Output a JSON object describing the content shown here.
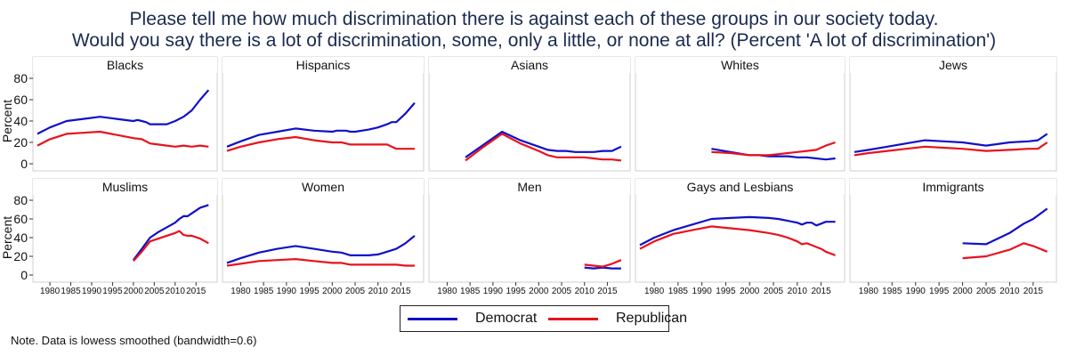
{
  "title_line1": "Please tell me how much discrimination there is against each of these groups in our society today.",
  "title_line2": "Would you say there is a lot of discrimination, some, only a little, or none at all? (Percent 'A lot of discrimination')",
  "note": "Note. Data is lowess smoothed (bandwidth=0.6)",
  "colors": {
    "democrat": "#1010c8",
    "republican": "#e8121e"
  },
  "chart_data": {
    "type": "line",
    "ylabel": "Percent",
    "xlim": [
      1977,
      2019
    ],
    "ylim": [
      0,
      80
    ],
    "x_ticks": [
      1980,
      1985,
      1990,
      1995,
      2000,
      2005,
      2010,
      2015
    ],
    "y_ticks": [
      0,
      20,
      40,
      60,
      80
    ],
    "legend": {
      "position": "bottom-center",
      "entries": [
        "Democrat",
        "Republican"
      ]
    },
    "panels": [
      {
        "name": "Blacks",
        "series": [
          {
            "name": "Democrat",
            "x": [
              1977,
              1980,
              1984,
              1988,
              1992,
              1996,
              2000,
              2001,
              2002,
              2003,
              2004,
              2005,
              2008,
              2010,
              2012,
              2013,
              2014,
              2016,
              2018
            ],
            "y": [
              28,
              34,
              40,
              42,
              44,
              42,
              40,
              41,
              40,
              39,
              37,
              37,
              37,
              40,
              44,
              47,
              50,
              60,
              69
            ]
          },
          {
            "name": "Republican",
            "x": [
              1977,
              1980,
              1984,
              1988,
              1992,
              1996,
              2000,
              2002,
              2004,
              2006,
              2008,
              2010,
              2012,
              2014,
              2016,
              2018
            ],
            "y": [
              17,
              23,
              28,
              29,
              30,
              27,
              24,
              23,
              19,
              18,
              17,
              16,
              17,
              16,
              17,
              16
            ]
          }
        ]
      },
      {
        "name": "Hispanics",
        "series": [
          {
            "name": "Democrat",
            "x": [
              1977,
              1980,
              1984,
              1988,
              1992,
              1996,
              2000,
              2001,
              2002,
              2003,
              2004,
              2005,
              2008,
              2010,
              2012,
              2013,
              2014,
              2016,
              2018
            ],
            "y": [
              16,
              21,
              27,
              30,
              33,
              31,
              30,
              31,
              31,
              31,
              30,
              30,
              32,
              34,
              37,
              39,
              39,
              47,
              57
            ]
          },
          {
            "name": "Republican",
            "x": [
              1977,
              1980,
              1984,
              1988,
              1992,
              1996,
              2000,
              2002,
              2004,
              2006,
              2008,
              2010,
              2012,
              2014,
              2016,
              2018
            ],
            "y": [
              12,
              16,
              20,
              23,
              25,
              22,
              20,
              20,
              18,
              18,
              18,
              18,
              18,
              14,
              14,
              14
            ]
          }
        ]
      },
      {
        "name": "Asians",
        "series": [
          {
            "name": "Democrat",
            "x": [
              1984,
              1988,
              1992,
              1996,
              2000,
              2002,
              2004,
              2006,
              2008,
              2010,
              2012,
              2014,
              2016,
              2018
            ],
            "y": [
              6,
              18,
              30,
              22,
              16,
              13,
              12,
              12,
              11,
              11,
              11,
              12,
              12,
              16
            ]
          },
          {
            "name": "Republican",
            "x": [
              1984,
              1988,
              1992,
              1996,
              2000,
              2002,
              2004,
              2006,
              2008,
              2010,
              2012,
              2014,
              2016,
              2018
            ],
            "y": [
              3,
              16,
              28,
              19,
              12,
              8,
              6,
              6,
              6,
              6,
              5,
              4,
              4,
              3
            ]
          }
        ]
      },
      {
        "name": "Whites",
        "series": [
          {
            "name": "Democrat",
            "x": [
              1992,
              1996,
              2000,
              2002,
              2004,
              2006,
              2008,
              2010,
              2012,
              2014,
              2016,
              2018
            ],
            "y": [
              14,
              11,
              8,
              8,
              7,
              7,
              7,
              6,
              6,
              5,
              4,
              5
            ]
          },
          {
            "name": "Republican",
            "x": [
              1992,
              1996,
              2000,
              2002,
              2004,
              2006,
              2008,
              2010,
              2012,
              2014,
              2016,
              2018
            ],
            "y": [
              11,
              10,
              8,
              8,
              8,
              9,
              10,
              11,
              12,
              13,
              17,
              20
            ]
          }
        ]
      },
      {
        "name": "Jews",
        "series": [
          {
            "name": "Democrat",
            "x": [
              1977,
              1980,
              1984,
              1988,
              1992,
              1996,
              2000,
              2005,
              2010,
              2014,
              2016,
              2018
            ],
            "y": [
              11,
              13,
              16,
              19,
              22,
              21,
              20,
              17,
              20,
              21,
              22,
              28
            ]
          },
          {
            "name": "Republican",
            "x": [
              1977,
              1980,
              1984,
              1988,
              1992,
              1996,
              2000,
              2005,
              2010,
              2014,
              2016,
              2018
            ],
            "y": [
              8,
              10,
              12,
              14,
              16,
              15,
              14,
              12,
              13,
              14,
              14,
              20
            ]
          }
        ]
      },
      {
        "name": "Muslims",
        "series": [
          {
            "name": "Democrat",
            "x": [
              2000,
              2002,
              2004,
              2006,
              2008,
              2010,
              2011,
              2012,
              2013,
              2014,
              2016,
              2018
            ],
            "y": [
              16,
              28,
              40,
              46,
              51,
              56,
              60,
              63,
              63,
              66,
              72,
              75
            ]
          },
          {
            "name": "Republican",
            "x": [
              2000,
              2002,
              2004,
              2006,
              2008,
              2010,
              2011,
              2012,
              2013,
              2014,
              2016,
              2018
            ],
            "y": [
              15,
              25,
              36,
              39,
              42,
              45,
              47,
              43,
              42,
              42,
              39,
              34
            ]
          }
        ]
      },
      {
        "name": "Women",
        "series": [
          {
            "name": "Democrat",
            "x": [
              1977,
              1980,
              1984,
              1988,
              1992,
              1996,
              2000,
              2002,
              2004,
              2006,
              2008,
              2010,
              2012,
              2014,
              2016,
              2018
            ],
            "y": [
              13,
              18,
              24,
              28,
              31,
              28,
              25,
              24,
              21,
              21,
              21,
              22,
              25,
              28,
              34,
              42
            ]
          },
          {
            "name": "Republican",
            "x": [
              1977,
              1980,
              1984,
              1988,
              1992,
              1996,
              2000,
              2002,
              2004,
              2006,
              2008,
              2010,
              2012,
              2014,
              2016,
              2018
            ],
            "y": [
              10,
              12,
              15,
              16,
              17,
              15,
              13,
              13,
              11,
              11,
              11,
              11,
              11,
              11,
              10,
              10
            ]
          }
        ]
      },
      {
        "name": "Men",
        "series": [
          {
            "name": "Democrat",
            "x": [
              2010,
              2012,
              2014,
              2016,
              2018
            ],
            "y": [
              8,
              7,
              8,
              7,
              7
            ]
          },
          {
            "name": "Republican",
            "x": [
              2010,
              2012,
              2014,
              2016,
              2018
            ],
            "y": [
              11,
              10,
              9,
              12,
              16
            ]
          }
        ]
      },
      {
        "name": "Gays and Lesbians",
        "series": [
          {
            "name": "Democrat",
            "x": [
              1977,
              1980,
              1984,
              1988,
              1992,
              1996,
              2000,
              2004,
              2006,
              2008,
              2010,
              2011,
              2012,
              2013,
              2014,
              2015,
              2016,
              2018
            ],
            "y": [
              32,
              40,
              48,
              54,
              60,
              61,
              62,
              61,
              60,
              58,
              56,
              54,
              56,
              56,
              53,
              55,
              57,
              57
            ]
          },
          {
            "name": "Republican",
            "x": [
              1977,
              1980,
              1984,
              1988,
              1992,
              1996,
              2000,
              2004,
              2006,
              2008,
              2010,
              2011,
              2012,
              2013,
              2014,
              2015,
              2016,
              2018
            ],
            "y": [
              28,
              36,
              44,
              48,
              52,
              50,
              48,
              45,
              43,
              40,
              36,
              33,
              34,
              32,
              30,
              28,
              25,
              21
            ]
          }
        ]
      },
      {
        "name": "Immigrants",
        "series": [
          {
            "name": "Democrat",
            "x": [
              2000,
              2005,
              2010,
              2013,
              2015,
              2018
            ],
            "y": [
              34,
              33,
              45,
              55,
              60,
              71
            ]
          },
          {
            "name": "Republican",
            "x": [
              2000,
              2005,
              2010,
              2013,
              2015,
              2018
            ],
            "y": [
              18,
              20,
              27,
              34,
              31,
              25
            ]
          }
        ]
      }
    ]
  }
}
